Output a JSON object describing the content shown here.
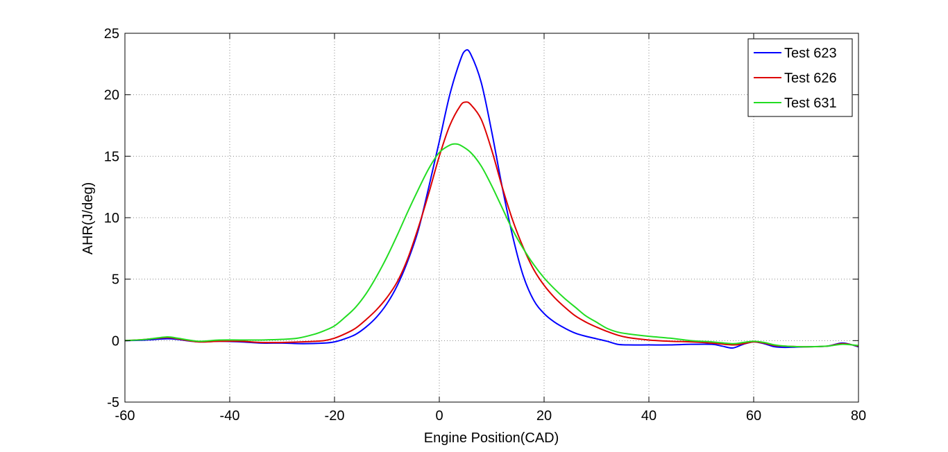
{
  "chart_data": {
    "type": "line",
    "title": "",
    "xlabel": "Engine Position(CAD)",
    "ylabel": "AHR(J/deg)",
    "xlim": [
      -60,
      80
    ],
    "ylim": [
      -5,
      25
    ],
    "xticks": [
      -60,
      -40,
      -20,
      0,
      20,
      40,
      60,
      80
    ],
    "yticks": [
      -5,
      0,
      5,
      10,
      15,
      20,
      25
    ],
    "grid": true,
    "grid_style": "dotted",
    "legend_position": "top-right",
    "series": [
      {
        "name": "Test 623",
        "color": "#0000ff",
        "points": [
          [
            -60,
            0
          ],
          [
            -56,
            0.05
          ],
          [
            -52,
            0.15
          ],
          [
            -50,
            0.1
          ],
          [
            -46,
            -0.1
          ],
          [
            -42,
            -0.05
          ],
          [
            -38,
            -0.1
          ],
          [
            -34,
            -0.2
          ],
          [
            -30,
            -0.2
          ],
          [
            -26,
            -0.25
          ],
          [
            -22,
            -0.2
          ],
          [
            -20,
            -0.1
          ],
          [
            -18,
            0.15
          ],
          [
            -16,
            0.5
          ],
          [
            -14,
            1.1
          ],
          [
            -12,
            1.9
          ],
          [
            -10,
            3.0
          ],
          [
            -8,
            4.5
          ],
          [
            -6,
            6.5
          ],
          [
            -4,
            9.0
          ],
          [
            -2,
            12.5
          ],
          [
            0,
            16.2
          ],
          [
            2,
            20.0
          ],
          [
            4,
            22.8
          ],
          [
            5,
            23.6
          ],
          [
            6,
            23.3
          ],
          [
            8,
            21.0
          ],
          [
            10,
            17.0
          ],
          [
            12,
            12.5
          ],
          [
            14,
            8.5
          ],
          [
            16,
            5.3
          ],
          [
            18,
            3.3
          ],
          [
            20,
            2.2
          ],
          [
            22,
            1.5
          ],
          [
            24,
            1.0
          ],
          [
            26,
            0.6
          ],
          [
            28,
            0.35
          ],
          [
            30,
            0.15
          ],
          [
            32,
            -0.05
          ],
          [
            34,
            -0.3
          ],
          [
            36,
            -0.35
          ],
          [
            40,
            -0.35
          ],
          [
            44,
            -0.35
          ],
          [
            48,
            -0.3
          ],
          [
            52,
            -0.3
          ],
          [
            54,
            -0.45
          ],
          [
            56,
            -0.6
          ],
          [
            58,
            -0.3
          ],
          [
            60,
            -0.1
          ],
          [
            62,
            -0.25
          ],
          [
            64,
            -0.5
          ],
          [
            66,
            -0.55
          ],
          [
            70,
            -0.5
          ],
          [
            74,
            -0.45
          ],
          [
            77,
            -0.2
          ],
          [
            80,
            -0.5
          ]
        ]
      },
      {
        "name": "Test 626",
        "color": "#dd0000",
        "points": [
          [
            -60,
            0
          ],
          [
            -56,
            0.1
          ],
          [
            -52,
            0.25
          ],
          [
            -50,
            0.15
          ],
          [
            -46,
            -0.1
          ],
          [
            -42,
            -0.05
          ],
          [
            -38,
            -0.05
          ],
          [
            -34,
            -0.15
          ],
          [
            -30,
            -0.15
          ],
          [
            -26,
            -0.1
          ],
          [
            -22,
            0.0
          ],
          [
            -20,
            0.2
          ],
          [
            -18,
            0.55
          ],
          [
            -16,
            1.0
          ],
          [
            -14,
            1.7
          ],
          [
            -12,
            2.5
          ],
          [
            -10,
            3.5
          ],
          [
            -8,
            4.8
          ],
          [
            -6,
            6.7
          ],
          [
            -4,
            9.2
          ],
          [
            -2,
            12.0
          ],
          [
            0,
            15.0
          ],
          [
            2,
            17.5
          ],
          [
            4,
            19.1
          ],
          [
            5,
            19.4
          ],
          [
            6,
            19.2
          ],
          [
            8,
            18.0
          ],
          [
            10,
            15.5
          ],
          [
            12,
            12.5
          ],
          [
            14,
            9.8
          ],
          [
            16,
            7.6
          ],
          [
            18,
            5.8
          ],
          [
            20,
            4.5
          ],
          [
            22,
            3.5
          ],
          [
            24,
            2.7
          ],
          [
            26,
            2.0
          ],
          [
            28,
            1.5
          ],
          [
            30,
            1.1
          ],
          [
            32,
            0.75
          ],
          [
            34,
            0.45
          ],
          [
            36,
            0.25
          ],
          [
            40,
            0.05
          ],
          [
            44,
            -0.05
          ],
          [
            48,
            -0.1
          ],
          [
            52,
            -0.2
          ],
          [
            56,
            -0.35
          ],
          [
            58,
            -0.25
          ],
          [
            60,
            -0.1
          ],
          [
            62,
            -0.2
          ],
          [
            64,
            -0.4
          ],
          [
            66,
            -0.45
          ],
          [
            70,
            -0.5
          ],
          [
            74,
            -0.45
          ],
          [
            77,
            -0.25
          ],
          [
            80,
            -0.45
          ]
        ]
      },
      {
        "name": "Test 631",
        "color": "#22dd22",
        "points": [
          [
            -60,
            0
          ],
          [
            -56,
            0.1
          ],
          [
            -52,
            0.3
          ],
          [
            -50,
            0.2
          ],
          [
            -46,
            -0.05
          ],
          [
            -42,
            0.05
          ],
          [
            -38,
            0.05
          ],
          [
            -34,
            0.05
          ],
          [
            -30,
            0.1
          ],
          [
            -27,
            0.2
          ],
          [
            -24,
            0.5
          ],
          [
            -22,
            0.8
          ],
          [
            -20,
            1.2
          ],
          [
            -18,
            1.9
          ],
          [
            -16,
            2.7
          ],
          [
            -14,
            3.8
          ],
          [
            -12,
            5.2
          ],
          [
            -10,
            6.8
          ],
          [
            -8,
            8.6
          ],
          [
            -6,
            10.5
          ],
          [
            -4,
            12.3
          ],
          [
            -2,
            14.0
          ],
          [
            0,
            15.3
          ],
          [
            2,
            15.9
          ],
          [
            3,
            16.0
          ],
          [
            4,
            15.9
          ],
          [
            6,
            15.3
          ],
          [
            8,
            14.2
          ],
          [
            10,
            12.6
          ],
          [
            12,
            10.8
          ],
          [
            14,
            9.0
          ],
          [
            16,
            7.5
          ],
          [
            18,
            6.2
          ],
          [
            20,
            5.1
          ],
          [
            22,
            4.2
          ],
          [
            24,
            3.4
          ],
          [
            26,
            2.7
          ],
          [
            28,
            2.0
          ],
          [
            30,
            1.5
          ],
          [
            32,
            1.0
          ],
          [
            34,
            0.7
          ],
          [
            36,
            0.55
          ],
          [
            40,
            0.35
          ],
          [
            44,
            0.2
          ],
          [
            48,
            0.0
          ],
          [
            52,
            -0.1
          ],
          [
            56,
            -0.25
          ],
          [
            58,
            -0.15
          ],
          [
            60,
            -0.05
          ],
          [
            62,
            -0.15
          ],
          [
            64,
            -0.35
          ],
          [
            66,
            -0.45
          ],
          [
            70,
            -0.5
          ],
          [
            74,
            -0.45
          ],
          [
            77,
            -0.3
          ],
          [
            80,
            -0.4
          ]
        ]
      }
    ]
  }
}
